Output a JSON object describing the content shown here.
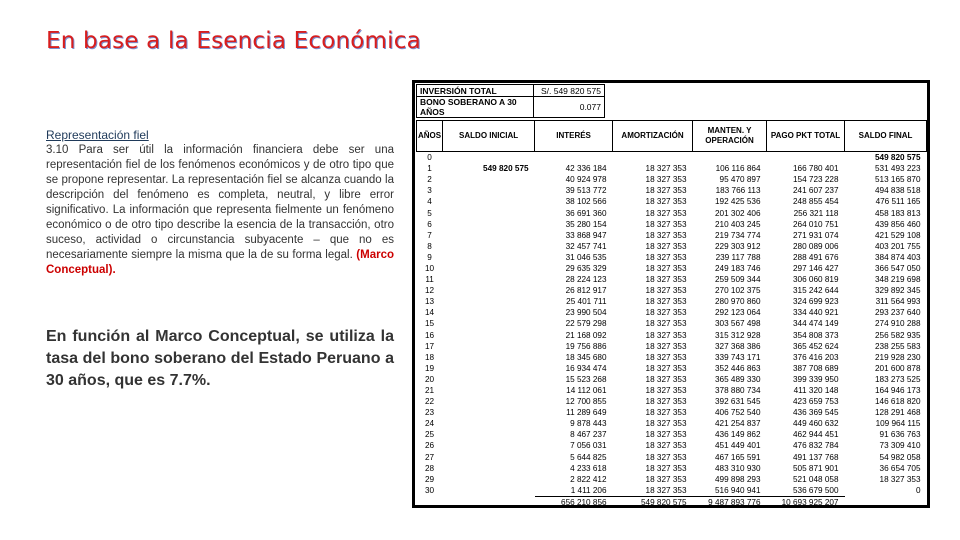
{
  "title": "En base a la Esencia Económica",
  "subtitle": "Representación fiel",
  "paragraph": "3.10 Para ser útil la información financiera debe ser una representación fiel de los fenómenos económicos y de otro tipo que se propone representar. La representación fiel se alcanza cuando la descripción del fenómeno es completa, neutral, y libre error significativo. La información que representa fielmente un fenómeno económico o de otro tipo describe la esencia de la transacción, otro suceso, actividad o circunstancia subyacente – que no es necesariamente siempre la misma que la de su forma legal.",
  "paragraph_ref": "(Marco Conceptual).",
  "conclusion": "En función al Marco Conceptual, se utiliza la tasa del bono soberano del Estado Peruano a 30 años, que es 7.7%.",
  "table": {
    "inversion_label": "INVERSIÓN TOTAL",
    "inversion_value": "S/. 549 820 575",
    "bono_label": "BONO SOBERANO A 30 AÑOS",
    "bono_value": "0.077",
    "headers": [
      "AÑOS",
      "SALDO INICIAL",
      "INTERÉS",
      "AMORTIZACIÓN",
      "MANTEN. Y OPERACIÓN",
      "PAGO PKT TOTAL",
      "SALDO FINAL"
    ],
    "rows": [
      [
        "0",
        "",
        "",
        "",
        "",
        "",
        "549 820 575"
      ],
      [
        "1",
        "549 820 575",
        "42 336 184",
        "18 327 353",
        "106 116 864",
        "166 780 401",
        "531 493 223"
      ],
      [
        "2",
        "",
        "40 924 978",
        "18 327 353",
        "95 470 897",
        "154 723 228",
        "513 165 870"
      ],
      [
        "3",
        "",
        "39 513 772",
        "18 327 353",
        "183 766 113",
        "241 607 237",
        "494 838 518"
      ],
      [
        "4",
        "",
        "38 102 566",
        "18 327 353",
        "192 425 536",
        "248 855 454",
        "476 511 165"
      ],
      [
        "5",
        "",
        "36 691 360",
        "18 327 353",
        "201 302 406",
        "256 321 118",
        "458 183 813"
      ],
      [
        "6",
        "",
        "35 280 154",
        "18 327 353",
        "210 403 245",
        "264 010 751",
        "439 856 460"
      ],
      [
        "7",
        "",
        "33 868 947",
        "18 327 353",
        "219 734 774",
        "271 931 074",
        "421 529 108"
      ],
      [
        "8",
        "",
        "32 457 741",
        "18 327 353",
        "229 303 912",
        "280 089 006",
        "403 201 755"
      ],
      [
        "9",
        "",
        "31 046 535",
        "18 327 353",
        "239 117 788",
        "288 491 676",
        "384 874 403"
      ],
      [
        "10",
        "",
        "29 635 329",
        "18 327 353",
        "249 183 746",
        "297 146 427",
        "366 547 050"
      ],
      [
        "11",
        "",
        "28 224 123",
        "18 327 353",
        "259 509 344",
        "306 060 819",
        "348 219 698"
      ],
      [
        "12",
        "",
        "26 812 917",
        "18 327 353",
        "270 102 375",
        "315 242 644",
        "329 892 345"
      ],
      [
        "13",
        "",
        "25 401 711",
        "18 327 353",
        "280 970 860",
        "324 699 923",
        "311 564 993"
      ],
      [
        "14",
        "",
        "23 990 504",
        "18 327 353",
        "292 123 064",
        "334 440 921",
        "293 237 640"
      ],
      [
        "15",
        "",
        "22 579 298",
        "18 327 353",
        "303 567 498",
        "344 474 149",
        "274 910 288"
      ],
      [
        "16",
        "",
        "21 168 092",
        "18 327 353",
        "315 312 928",
        "354 808 373",
        "256 582 935"
      ],
      [
        "17",
        "",
        "19 756 886",
        "18 327 353",
        "327 368 386",
        "365 452 624",
        "238 255 583"
      ],
      [
        "18",
        "",
        "18 345 680",
        "18 327 353",
        "339 743 171",
        "376 416 203",
        "219 928 230"
      ],
      [
        "19",
        "",
        "16 934 474",
        "18 327 353",
        "352 446 863",
        "387 708 689",
        "201 600 878"
      ],
      [
        "20",
        "",
        "15 523 268",
        "18 327 353",
        "365 489 330",
        "399 339 950",
        "183 273 525"
      ],
      [
        "21",
        "",
        "14 112 061",
        "18 327 353",
        "378 880 734",
        "411 320 148",
        "164 946 173"
      ],
      [
        "22",
        "",
        "12 700 855",
        "18 327 353",
        "392 631 545",
        "423 659 753",
        "146 618 820"
      ],
      [
        "23",
        "",
        "11 289 649",
        "18 327 353",
        "406 752 540",
        "436 369 545",
        "128 291 468"
      ],
      [
        "24",
        "",
        "9 878 443",
        "18 327 353",
        "421 254 837",
        "449 460 632",
        "109 964 115"
      ],
      [
        "25",
        "",
        "8 467 237",
        "18 327 353",
        "436 149 862",
        "462 944 451",
        "91 636 763"
      ],
      [
        "26",
        "",
        "7 056 031",
        "18 327 353",
        "451 449 401",
        "476 832 784",
        "73 309 410"
      ],
      [
        "27",
        "",
        "5 644 825",
        "18 327 353",
        "467 165 591",
        "491 137 768",
        "54 982 058"
      ],
      [
        "28",
        "",
        "4 233 618",
        "18 327 353",
        "483 310 930",
        "505 871 901",
        "36 654 705"
      ],
      [
        "29",
        "",
        "2 822 412",
        "18 327 353",
        "499 898 293",
        "521 048 058",
        "18 327 353"
      ],
      [
        "30",
        "",
        "1 411 206",
        "18 327 353",
        "516 940 941",
        "536 679 500",
        "0"
      ]
    ],
    "totals": [
      "656 210 856",
      "549 820 575",
      "9 487 893 776",
      "10 693 925 207"
    ]
  }
}
